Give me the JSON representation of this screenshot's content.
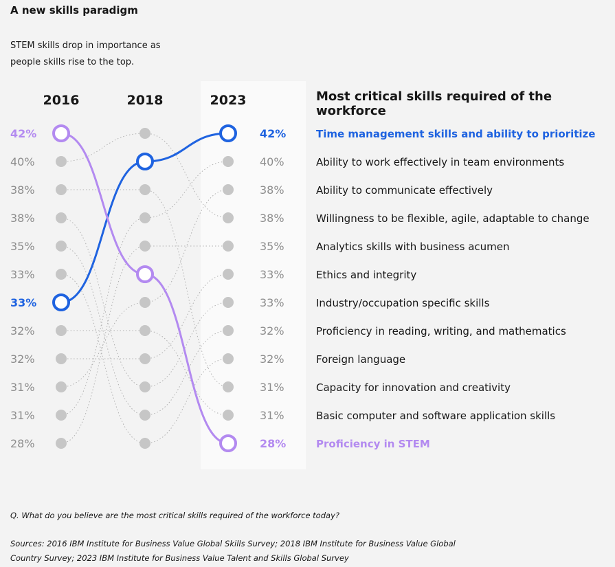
{
  "header": {
    "title": "A new skills paradigm",
    "subtitle": "STEM skills drop in importance as people skills rise to the top."
  },
  "chart_data": {
    "type": "slope",
    "title": "Most critical skills required of the workforce",
    "years": [
      "2016",
      "2018",
      "2023"
    ],
    "colors": {
      "dot": "#c6c6c6",
      "connector": "#b0b0b0",
      "label_gray": "#8d8d8d",
      "highlight_blue": "#1f63e0",
      "highlight_purple": "#b38af0",
      "text": "#161616"
    },
    "values_2016": [
      "42%",
      "40%",
      "38%",
      "38%",
      "35%",
      "33%",
      "33%",
      "32%",
      "32%",
      "31%",
      "31%",
      "28%"
    ],
    "values_2023": [
      "42%",
      "40%",
      "38%",
      "38%",
      "35%",
      "33%",
      "33%",
      "32%",
      "32%",
      "31%",
      "31%",
      "28%"
    ],
    "skills": [
      {
        "name": "Time management skills and ability to prioritize",
        "ranks": [
          7,
          2,
          1
        ],
        "highlight": "blue"
      },
      {
        "name": "Ability to work effectively in team environments",
        "ranks": [
          11,
          4,
          2
        ]
      },
      {
        "name": "Ability to communicate effectively",
        "ranks": [
          10,
          7,
          3
        ]
      },
      {
        "name": "Willingness to be flexible, agile, adaptable to change",
        "ranks": [
          2,
          1,
          4
        ]
      },
      {
        "name": "Analytics skills with business acumen",
        "ranks": [
          12,
          5,
          5
        ]
      },
      {
        "name": "Ethics and integrity",
        "ranks": [
          9,
          9,
          6
        ]
      },
      {
        "name": "Industry/occupation specific skills",
        "ranks": [
          4,
          10,
          7
        ]
      },
      {
        "name": "Proficiency in reading, writing, and mathematics",
        "ranks": [
          5,
          11,
          8
        ]
      },
      {
        "name": "Foreign language",
        "ranks": [
          6,
          12,
          9
        ]
      },
      {
        "name": "Capacity for innovation and creativity",
        "ranks": [
          3,
          3,
          10
        ]
      },
      {
        "name": "Basic computer and software application skills",
        "ranks": [
          8,
          8,
          11
        ]
      },
      {
        "name": "Proficiency in STEM",
        "ranks": [
          1,
          6,
          12
        ],
        "highlight": "purple"
      }
    ]
  },
  "footer": {
    "question": "Q. What do you believe are the most critical skills required of the workforce today?",
    "sources": "Sources: 2016 IBM Institute for Business Value Global Skills Survey; 2018 IBM Institute for Business Value Global Country Survey; 2023 IBM Institute for Business Value Talent and Skills Global Survey"
  }
}
